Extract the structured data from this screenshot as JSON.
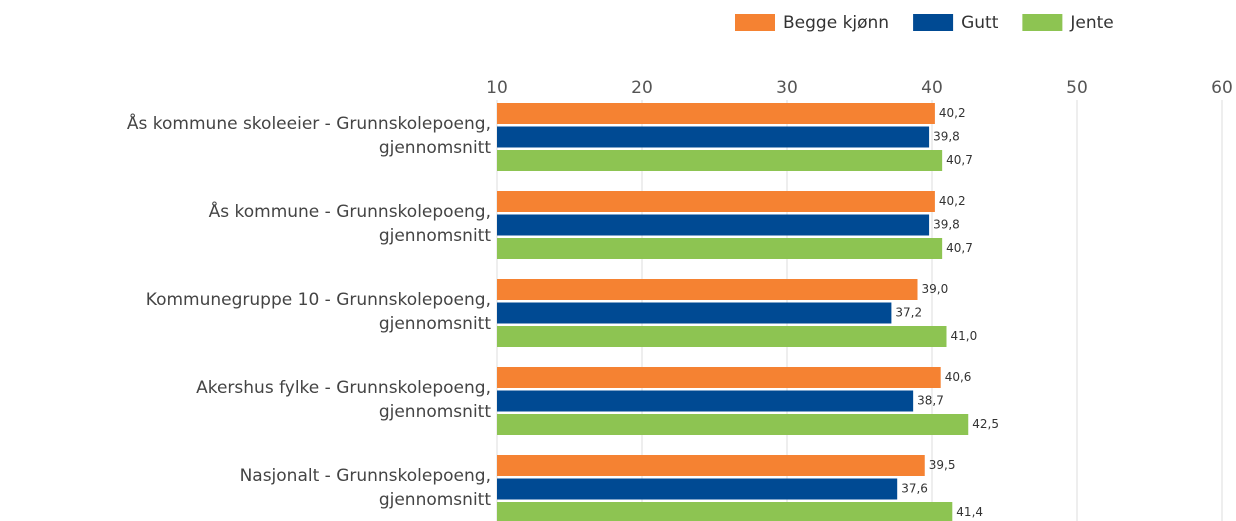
{
  "chart_data": {
    "type": "bar",
    "orientation": "horizontal",
    "categories": [
      [
        "Ås kommune skoleeier - Grunnskolepoeng,",
        "gjennomsnitt"
      ],
      [
        "Ås kommune - Grunnskolepoeng,",
        "gjennomsnitt"
      ],
      [
        "Kommunegruppe 10 - Grunnskolepoeng,",
        "gjennomsnitt"
      ],
      [
        "Akershus fylke - Grunnskolepoeng,",
        "gjennomsnitt"
      ],
      [
        "Nasjonalt - Grunnskolepoeng,",
        "gjennomsnitt"
      ]
    ],
    "series": [
      {
        "name": "Begge kjønn",
        "color": "#f58232",
        "values": [
          40.2,
          40.2,
          39.0,
          40.6,
          39.5
        ],
        "value_labels": [
          "40,2",
          "40,2",
          "39,0",
          "40,6",
          "39,5"
        ]
      },
      {
        "name": "Gutt",
        "color": "#004a93",
        "values": [
          39.8,
          39.8,
          37.2,
          38.7,
          37.6
        ],
        "value_labels": [
          "39,8",
          "39,8",
          "37,2",
          "38,7",
          "37,6"
        ]
      },
      {
        "name": "Jente",
        "color": "#8dc452",
        "values": [
          40.7,
          40.7,
          41.0,
          42.5,
          41.4
        ],
        "value_labels": [
          "40,7",
          "40,7",
          "41,0",
          "42,5",
          "41,4"
        ]
      }
    ],
    "xlim": [
      10,
      60
    ],
    "xticks": [
      10,
      20,
      30,
      40,
      50,
      60
    ],
    "grid": true,
    "legend": "top-right"
  }
}
